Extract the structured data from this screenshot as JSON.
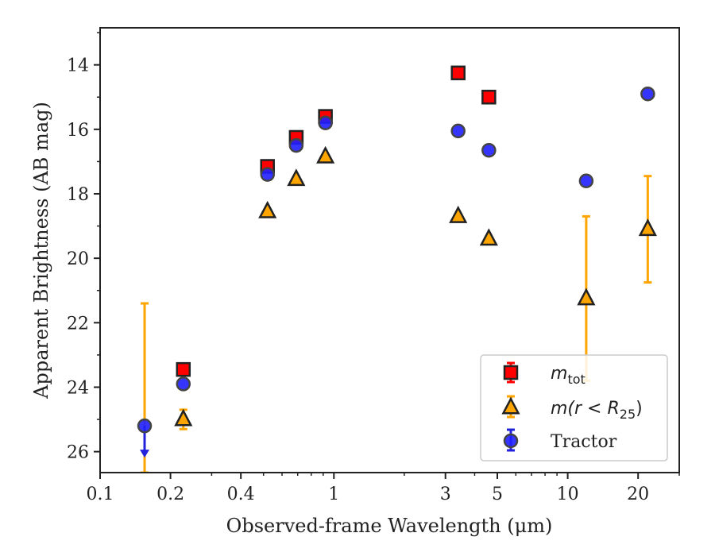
{
  "chart_data": {
    "type": "scatter",
    "xlabel": "Observed-frame Wavelength (μm)",
    "ylabel": "Apparent Brightness (AB mag)",
    "xscale": "log",
    "xlim": [
      0.1,
      30
    ],
    "ylim": [
      26.65,
      12.85
    ],
    "y_inverted": true,
    "xticks": [
      {
        "value": 0.1,
        "label": "0.1"
      },
      {
        "value": 0.2,
        "label": "0.2"
      },
      {
        "value": 0.4,
        "label": "0.4"
      },
      {
        "value": 1,
        "label": "1"
      },
      {
        "value": 3,
        "label": "3"
      },
      {
        "value": 5,
        "label": "5"
      },
      {
        "value": 10,
        "label": "10"
      },
      {
        "value": 20,
        "label": "20"
      }
    ],
    "yticks": [
      {
        "value": 14,
        "label": "14"
      },
      {
        "value": 16,
        "label": "16"
      },
      {
        "value": 18,
        "label": "18"
      },
      {
        "value": 20,
        "label": "20"
      },
      {
        "value": 22,
        "label": "22"
      },
      {
        "value": 24,
        "label": "24"
      },
      {
        "value": 26,
        "label": "26"
      }
    ],
    "grid": false,
    "legend_position": "lower-right",
    "series": [
      {
        "name": "m_tot",
        "marker": "square",
        "color": "#ff0000",
        "points": [
          {
            "x": 0.227,
            "y": 23.45
          },
          {
            "x": 0.52,
            "y": 17.15
          },
          {
            "x": 0.69,
            "y": 16.25
          },
          {
            "x": 0.92,
            "y": 15.6
          },
          {
            "x": 3.4,
            "y": 14.25
          },
          {
            "x": 4.6,
            "y": 15.0
          }
        ]
      },
      {
        "name": "m(r<R25)",
        "marker": "triangle",
        "color": "#ffa500",
        "points": [
          {
            "x": 0.227,
            "y": 25.0,
            "err_low": 0.3,
            "err_high": 0.3
          },
          {
            "x": 0.52,
            "y": 18.55
          },
          {
            "x": 0.69,
            "y": 17.55
          },
          {
            "x": 0.92,
            "y": 16.85
          },
          {
            "x": 3.4,
            "y": 18.7
          },
          {
            "x": 4.6,
            "y": 19.4
          },
          {
            "x": 12.0,
            "y": 21.25,
            "err_low": 2.55,
            "err_high": 2.55
          },
          {
            "x": 22.0,
            "y": 19.1,
            "err_low": 1.65,
            "err_high": 1.65
          }
        ],
        "extra_error_bars": [
          {
            "x": 0.155,
            "y_top": 21.4,
            "y_bottom": 26.65
          }
        ]
      },
      {
        "name": "Tractor",
        "marker": "circle",
        "color": "#1f1fff",
        "points": [
          {
            "x": 0.155,
            "y": 25.2,
            "upper_limit": true
          },
          {
            "x": 0.227,
            "y": 23.9
          },
          {
            "x": 0.52,
            "y": 17.4
          },
          {
            "x": 0.69,
            "y": 16.5
          },
          {
            "x": 0.92,
            "y": 15.8
          },
          {
            "x": 3.4,
            "y": 16.05
          },
          {
            "x": 4.6,
            "y": 16.65
          },
          {
            "x": 12.0,
            "y": 17.6
          },
          {
            "x": 22.0,
            "y": 14.9
          }
        ]
      }
    ],
    "legend": [
      {
        "key": "m_tot",
        "label_base": "m",
        "label_sub": "tot"
      },
      {
        "key": "m(r<R25)",
        "label_base": "m(r < R",
        "label_sub": "25",
        "label_tail": ")"
      },
      {
        "key": "Tractor",
        "label": "Tractor"
      }
    ]
  }
}
